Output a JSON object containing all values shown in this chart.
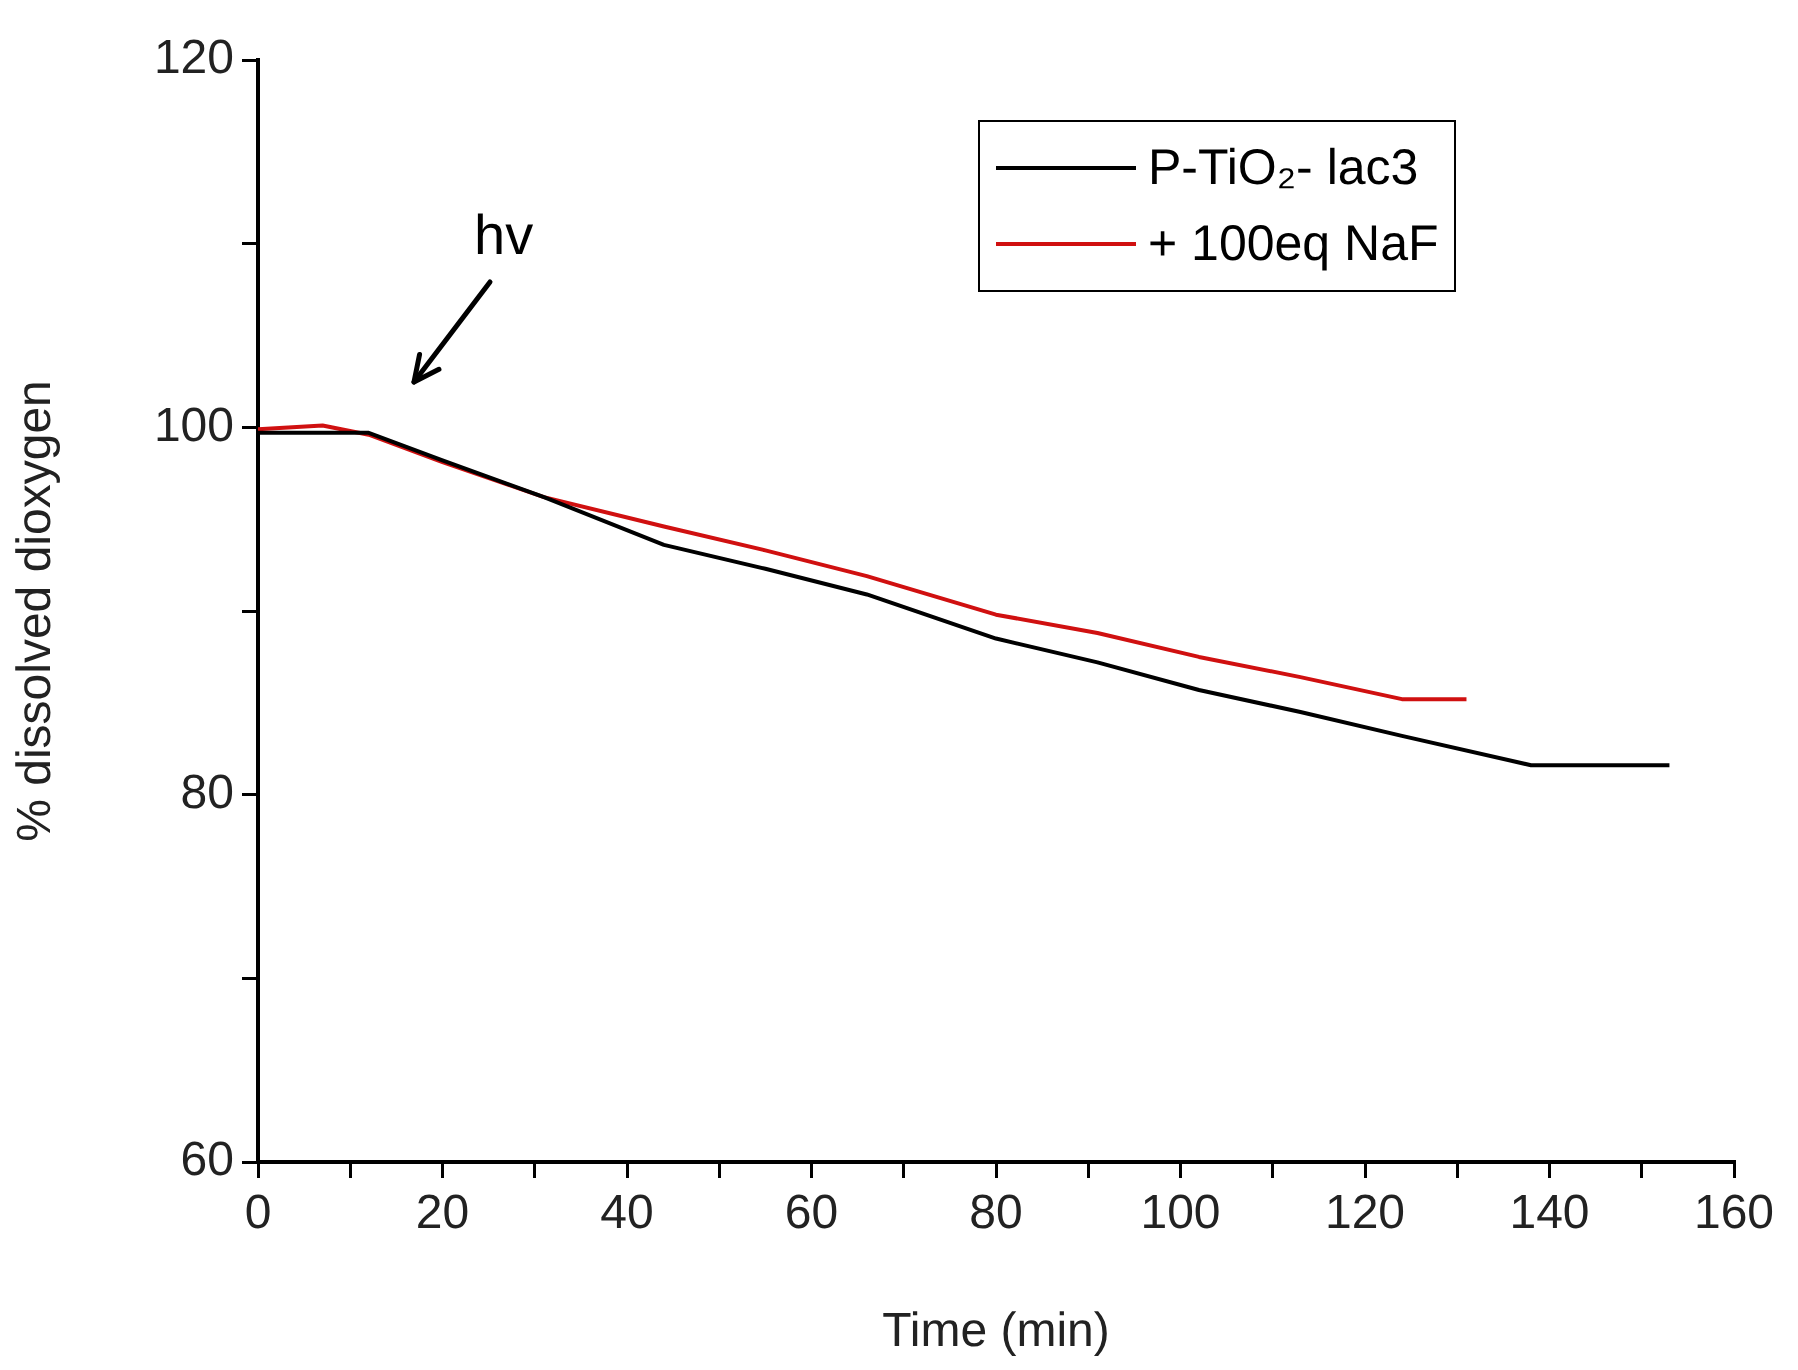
{
  "chart_data": {
    "type": "line",
    "xlabel": "Time (min)",
    "ylabel": "% dissolved dioxygen",
    "xlim": [
      0,
      160
    ],
    "xticks": [
      0,
      {
        "value": 10,
        "label": null
      },
      20,
      {
        "value": 30,
        "label": null
      },
      40,
      {
        "value": 50,
        "label": null
      },
      60,
      {
        "value": 70,
        "label": null
      },
      80,
      {
        "value": 90,
        "label": null
      },
      100,
      {
        "value": 110,
        "label": null
      },
      120,
      {
        "value": 130,
        "label": null
      },
      140,
      {
        "value": 150,
        "label": null
      },
      160
    ],
    "ylim": [
      60,
      120
    ],
    "yticks": [
      60,
      {
        "value": 70,
        "label": null
      },
      80,
      {
        "value": 90,
        "label": null
      },
      100,
      {
        "value": 110,
        "label": null
      },
      120
    ],
    "grid": false,
    "legend": "top right",
    "marker": "none",
    "line_style": "solid",
    "annotations": [
      "hv"
    ],
    "series": [
      {
        "name": "P-TiO₂- lac3",
        "color": "#000000",
        "x": [
          0,
          12,
          20,
          31,
          44,
          55,
          66,
          80,
          91,
          102,
          113,
          124,
          138,
          153
        ],
        "values": [
          99.7,
          99.7,
          98.2,
          96.2,
          93.6,
          92.3,
          90.9,
          88.5,
          87.2,
          85.7,
          84.5,
          83.2,
          81.6,
          81.6
        ]
      },
      {
        "name": "+ 100eq NaF",
        "color": "#d01010",
        "x": [
          0,
          7,
          12,
          20,
          31,
          44,
          55,
          66,
          80,
          91,
          102,
          113,
          124,
          131
        ],
        "values": [
          99.9,
          100.1,
          99.6,
          98.1,
          96.2,
          94.6,
          93.3,
          91.9,
          89.8,
          88.8,
          87.5,
          86.4,
          85.2,
          85.2
        ]
      }
    ]
  }
}
